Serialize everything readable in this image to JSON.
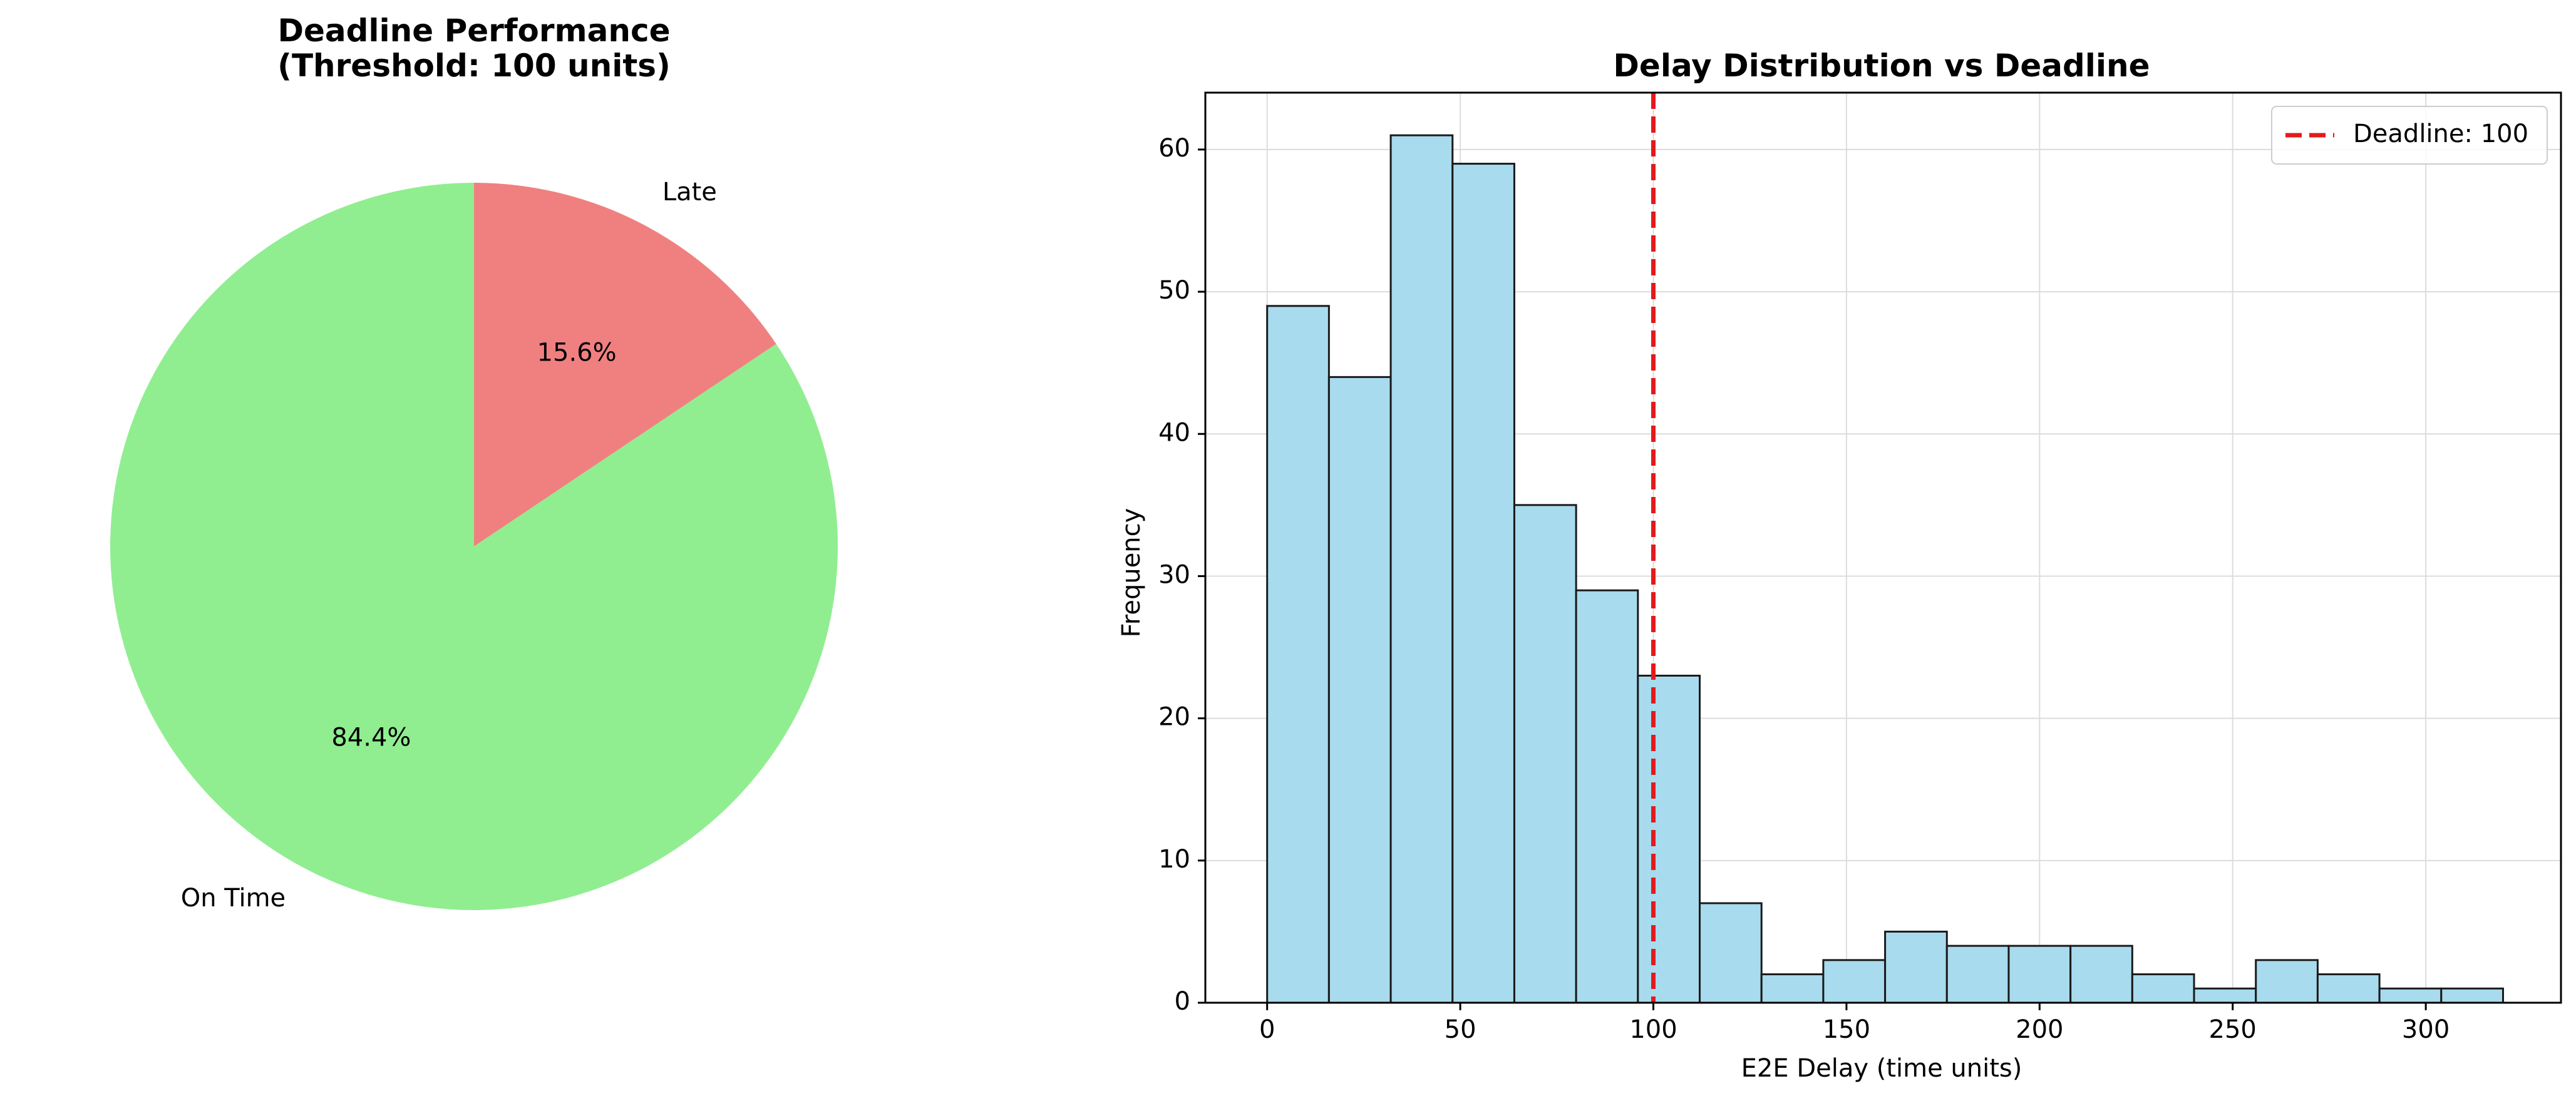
{
  "chart_data": [
    {
      "type": "pie",
      "title": "Deadline Performance\n(Threshold: 100 units)",
      "slices": [
        {
          "label": "Late",
          "value": 15.6,
          "pct_label": "15.6%",
          "color": "#f08080"
        },
        {
          "label": "On Time",
          "value": 84.4,
          "pct_label": "84.4%",
          "color": "#90ee90"
        }
      ],
      "start_angle_deg": 90,
      "direction": "clockwise"
    },
    {
      "type": "bar",
      "subtype": "histogram",
      "title": "Delay Distribution vs Deadline",
      "xlabel": "E2E Delay (time units)",
      "ylabel": "Frequency",
      "bins": {
        "edges": [
          0,
          16,
          32,
          48,
          64,
          80,
          96,
          112,
          128,
          144,
          160,
          176,
          192,
          208,
          224,
          240,
          256,
          272,
          288,
          304,
          320
        ],
        "counts": [
          49,
          44,
          61,
          59,
          35,
          29,
          23,
          7,
          2,
          3,
          5,
          4,
          4,
          4,
          2,
          1,
          3,
          2,
          1,
          1
        ]
      },
      "bar_color": "#a8dbee",
      "bar_edge_color": "#1a1a1a",
      "xlim": [
        -16,
        335
      ],
      "ylim": [
        0,
        64
      ],
      "xticks": [
        0,
        50,
        100,
        150,
        200,
        250,
        300
      ],
      "yticks": [
        0,
        10,
        20,
        30,
        40,
        50,
        60
      ],
      "grid": true,
      "deadline": {
        "value": 100,
        "label": "Deadline: 100",
        "color": "#e31a1c",
        "style": "dashed"
      },
      "legend": {
        "position": "top-right",
        "entries": [
          "Deadline: 100"
        ]
      }
    }
  ]
}
